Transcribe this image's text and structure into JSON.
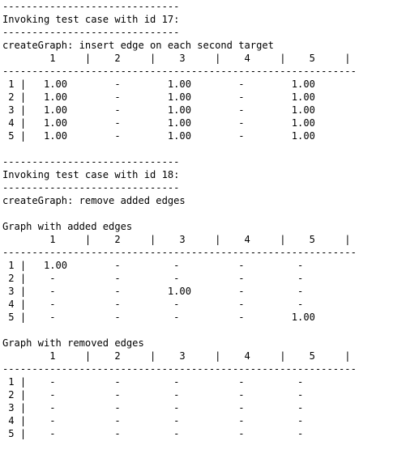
{
  "console": {
    "lines": [
      "------------------------------",
      "Invoking test case with id 17:",
      "------------------------------",
      "createGraph: insert edge on each second target",
      "        1     |    2     |    3     |    4     |    5     |",
      "------------------------------------------------------------",
      " 1 |   1.00        -        1.00        -        1.00",
      " 2 |   1.00        -        1.00        -        1.00",
      " 3 |   1.00        -        1.00        -        1.00",
      " 4 |   1.00        -        1.00        -        1.00",
      " 5 |   1.00        -        1.00        -        1.00",
      "",
      "------------------------------",
      "Invoking test case with id 18:",
      "------------------------------",
      "createGraph: remove added edges",
      "",
      "Graph with added edges",
      "        1     |    2     |    3     |    4     |    5     |",
      "------------------------------------------------------------",
      " 1 |   1.00        -         -          -         -",
      " 2 |    -          -         -          -         -",
      " 3 |    -          -        1.00        -         -",
      " 4 |    -          -         -          -         -",
      " 5 |    -          -         -          -        1.00",
      "",
      "Graph with removed edges",
      "        1     |    2     |    3     |    4     |    5     |",
      "------------------------------------------------------------",
      " 1 |    -          -         -          -         -",
      " 2 |    -          -         -          -         -",
      " 3 |    -          -         -          -         -",
      " 4 |    -          -         -          -         -",
      " 5 |    -          -         -          -         -"
    ]
  }
}
